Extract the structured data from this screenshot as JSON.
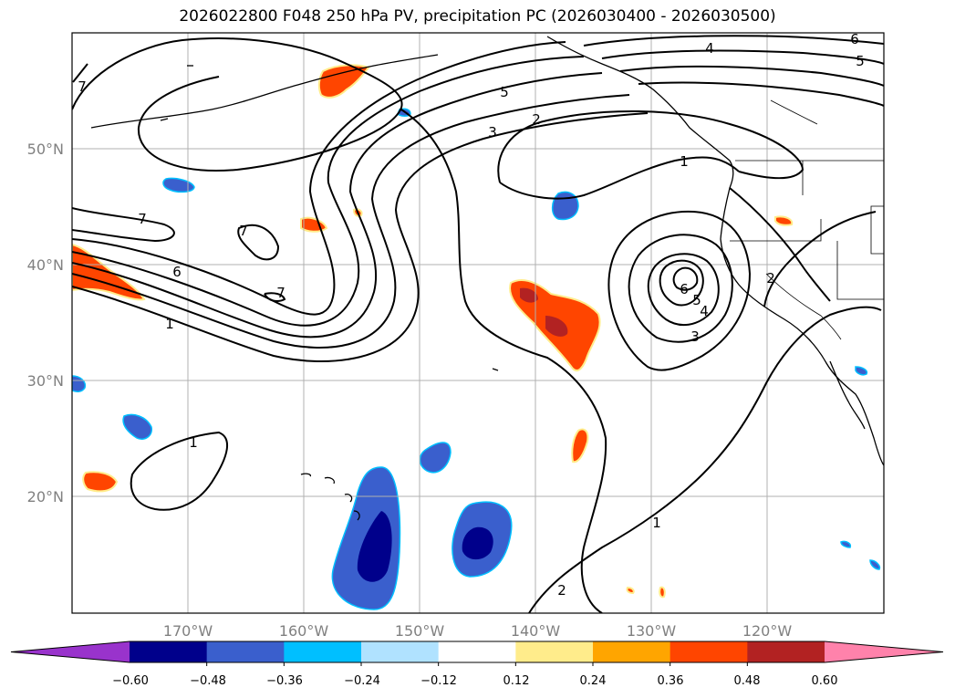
{
  "title": "2026022800 F048 250 hPa PV, precipitation PC (2026030400 - 2026030500)",
  "lon_labels": [
    "170°W",
    "160°W",
    "150°W",
    "140°W",
    "130°W",
    "120°W"
  ],
  "lat_labels": [
    "50°N",
    "40°N",
    "30°N",
    "20°N"
  ],
  "contour_labels": [
    "7",
    "7",
    "6",
    "1",
    "5",
    "3",
    "2",
    "4",
    "5",
    "6",
    "1",
    "6",
    "5",
    "4",
    "3",
    "2",
    "1",
    "1",
    "2",
    "7",
    "7"
  ],
  "colorbar": {
    "ticks": [
      "−0.60",
      "−0.48",
      "−0.36",
      "−0.24",
      "−0.12",
      "0.12",
      "0.24",
      "0.36",
      "0.48",
      "0.60"
    ],
    "colors": [
      "#9933cc",
      "#00008b",
      "#3a5fcd",
      "#00bfff",
      "#b0e2ff",
      "#ffffff",
      "#ffec8b",
      "#ffa500",
      "#ff4500",
      "#b22222",
      "#ff82ab"
    ]
  }
}
